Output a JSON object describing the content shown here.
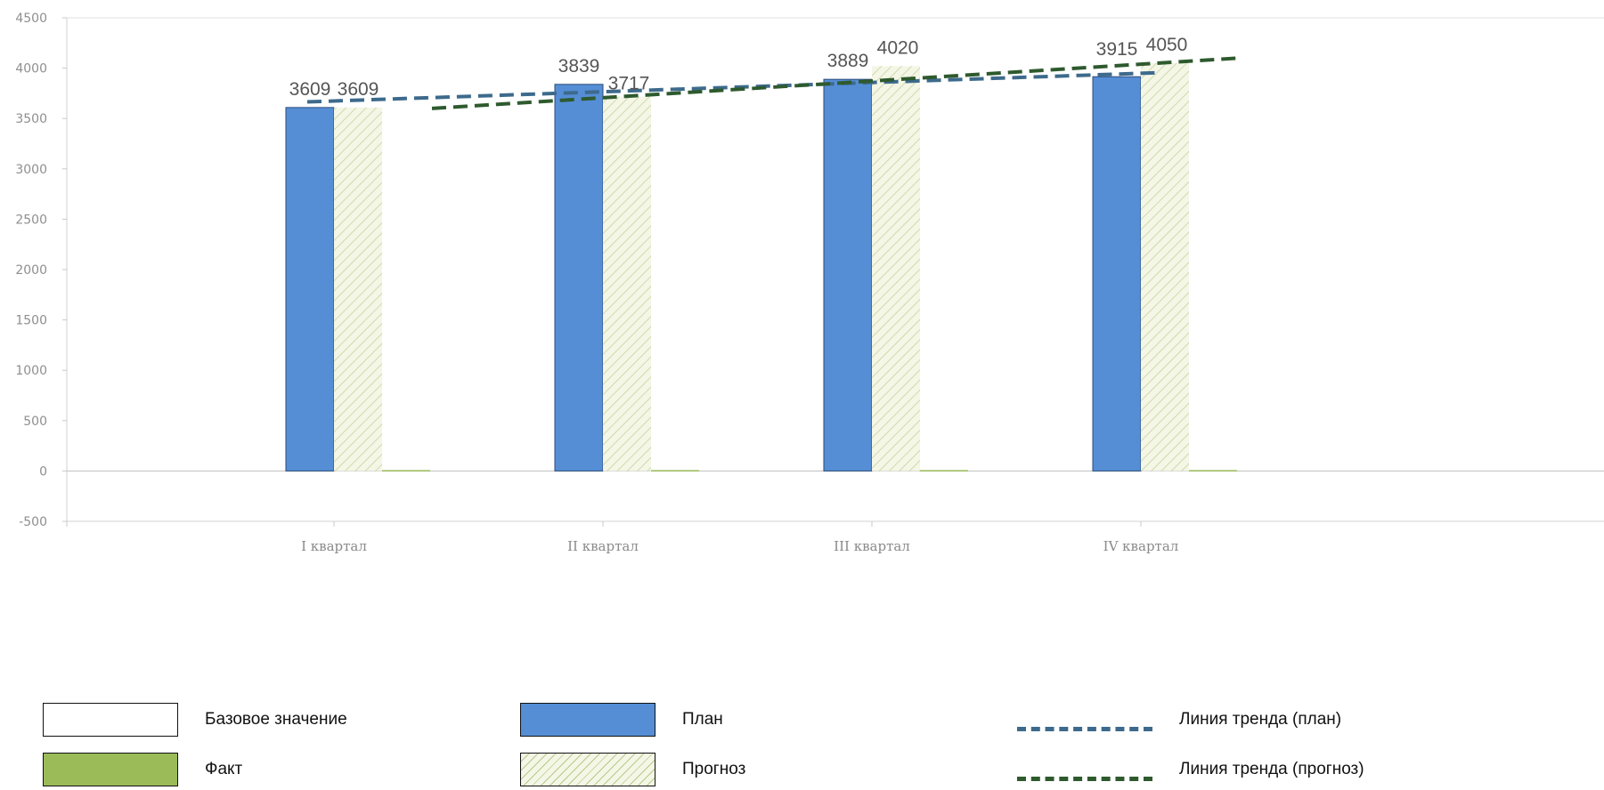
{
  "chart_data": {
    "type": "bar",
    "categories": [
      "I квартал",
      "II квартал",
      "III квартал",
      "IV квартал"
    ],
    "ylim": [
      -500,
      4500
    ],
    "yticks": [
      4500,
      4000,
      3500,
      3000,
      2500,
      2000,
      1500,
      1000,
      500,
      0,
      -500
    ],
    "grid": false,
    "series": [
      {
        "name": "Базовое значение",
        "values": [
          0,
          0,
          0,
          0
        ],
        "color": "#ffffff"
      },
      {
        "name": "План",
        "values": [
          3609,
          3839,
          3889,
          3915
        ],
        "labels": [
          "3609",
          "3839",
          "3889",
          "3915"
        ],
        "color": "#558ed5"
      },
      {
        "name": "Прогноз",
        "values": [
          3609,
          3717,
          4020,
          4050
        ],
        "labels": [
          "3609",
          "3717",
          "4020",
          "4050"
        ],
        "color": "#f4f6e6",
        "pattern": "hatched"
      },
      {
        "name": "Факт",
        "values": [
          0,
          0,
          0,
          0
        ],
        "color": "#9bbb59"
      }
    ],
    "trendlines": [
      {
        "name": "Линия тренда (план)",
        "start": 3665,
        "end": 3955,
        "color": "#3d6a8c"
      },
      {
        "name": "Линия тренда (прогноз)",
        "start": 3600,
        "end": 4100,
        "color": "#2e5a2e"
      }
    ],
    "legend": {
      "placement": "bottom",
      "items": [
        "Базовое значение",
        "План",
        "Линия тренда (план)",
        "Факт",
        "Прогноз",
        "Линия тренда (прогноз)"
      ]
    }
  }
}
